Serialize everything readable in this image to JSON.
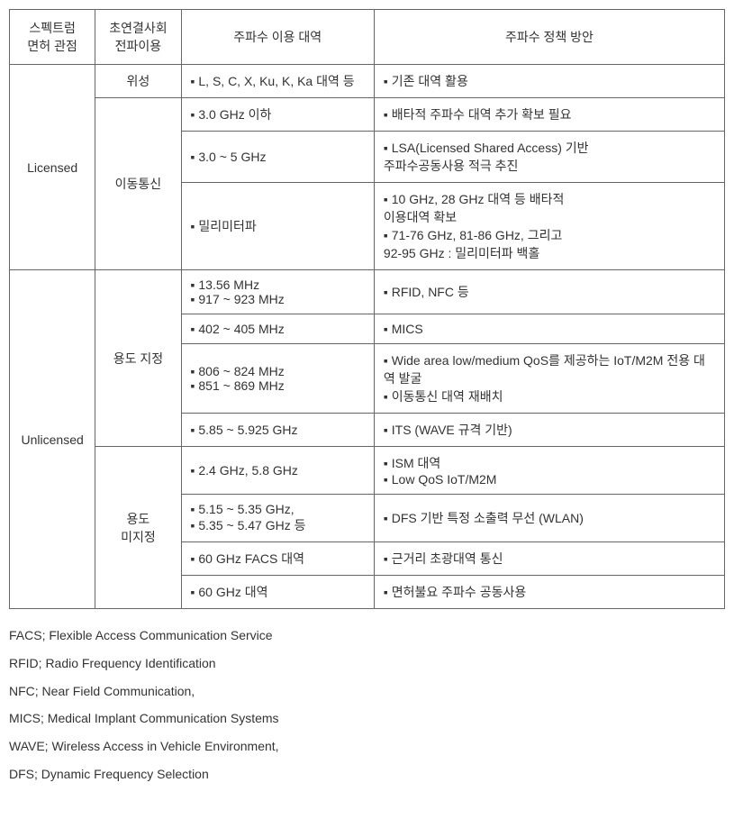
{
  "headers": {
    "col1": "스펙트럼\n면허 관점",
    "col2": "초연결사회\n전파이용",
    "col3": "주파수 이용 대역",
    "col4": "주파수 정책 방안"
  },
  "licensed_label": "Licensed",
  "unlicensed_label": "Unlicensed",
  "cat_satellite": "위성",
  "cat_mobile": "이동통신",
  "cat_designated": "용도 지정",
  "cat_undesignated": "용도\n미지정",
  "r1_band": "▪ L, S, C, X, Ku, K, Ka 대역 등",
  "r1_policy": "▪ 기존 대역 활용",
  "r2_band": "▪ 3.0 GHz 이하",
  "r2_policy": "▪ 배타적 주파수 대역 추가 확보 필요",
  "r3_band": "▪ 3.0 ~ 5 GHz",
  "r3_policy_a": "▪ LSA(Licensed Shared Access) 기반",
  "r3_policy_b": "  주파수공동사용 적극 추진",
  "r4_band": "▪ 밀리미터파",
  "r4_policy_a": "▪ 10 GHz, 28 GHz 대역 등 배타적",
  "r4_policy_b": "  이용대역 확보",
  "r4_policy_c": "▪  71-76 GHz, 81-86 GHz, 그리고",
  "r4_policy_d": "   92-95 GHz : 밀리미터파 백홀",
  "r5_band_a": "▪ 13.56 MHz",
  "r5_band_b": "▪ 917 ~ 923 MHz",
  "r5_policy": "▪ RFID, NFC 등",
  "r6_band": "▪ 402 ~ 405 MHz",
  "r6_policy": "▪ MICS",
  "r7_band_a": "▪ 806 ~ 824 MHz",
  "r7_band_b": "▪ 851 ~ 869 MHz",
  "r7_policy_a": "▪ Wide area low/medium QoS를 제공하는 IoT/M2M 전용 대역 발굴",
  "r7_policy_b": "▪ 이동통신 대역 재배치",
  "r8_band": "▪ 5.85 ~ 5.925 GHz",
  "r8_policy": "▪ ITS (WAVE 규격 기반)",
  "r9_band": "▪ 2.4 GHz, 5.8 GHz",
  "r9_policy_a": "▪ ISM 대역",
  "r9_policy_b": "▪ Low QoS IoT/M2M",
  "r10_band_a": "▪  5.15 ~ 5.35 GHz,",
  "r10_band_b": "▪ 5.35 ~ 5.47 GHz 등",
  "r10_policy": "▪ DFS 기반 특정 소출력 무선 (WLAN)",
  "r11_band": "▪ 60 GHz FACS 대역",
  "r11_policy": "▪ 근거리 초광대역 통신",
  "r12_band": "▪ 60 GHz 대역",
  "r12_policy": "▪ 면허불요 주파수 공동사용",
  "legend": {
    "facs": "FACS; Flexible Access Communication Service",
    "rfid": "RFID; Radio Frequency Identification",
    "nfc": "NFC; Near Field Communication,",
    "mics": "MICS; Medical Implant Communication Systems",
    "wave": "WAVE; Wireless Access in Vehicle Environment,",
    "dfs": "DFS; Dynamic Frequency Selection"
  }
}
